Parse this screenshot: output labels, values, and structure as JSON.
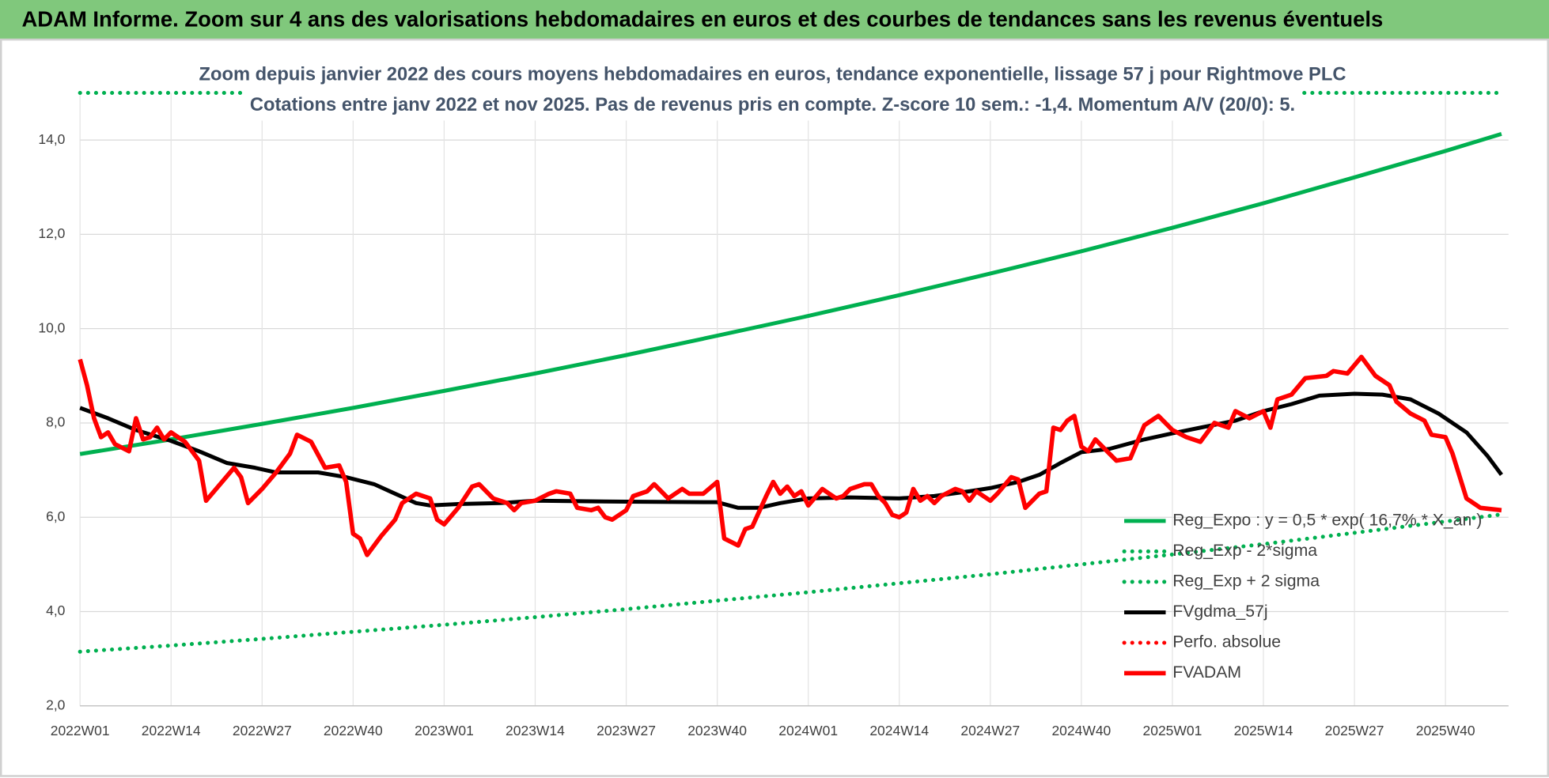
{
  "header": {
    "title": "ADAM Informe. Zoom sur 4 ans des valorisations hebdomadaires en euros et des courbes de tendances sans les revenus éventuels"
  },
  "chart_data": {
    "type": "line",
    "title": "Zoom depuis janvier 2022 des cours moyens hebdomadaires en euros, tendance exponentielle, lissage 57 j pour Rightmove PLC",
    "subtitle": "Cotations entre janv 2022 et nov 2025. Pas de revenus pris en compte. Z-score 10 sem.: -1,4.  Momentum A/V (20/0): 5.",
    "xlim": [
      0,
      204
    ],
    "xticks": [
      {
        "value": 0,
        "label": "2022W01"
      },
      {
        "value": 13,
        "label": "2022W14"
      },
      {
        "value": 26,
        "label": "2022W27"
      },
      {
        "value": 39,
        "label": "2022W40"
      },
      {
        "value": 52,
        "label": "2023W01"
      },
      {
        "value": 65,
        "label": "2023W14"
      },
      {
        "value": 78,
        "label": "2023W27"
      },
      {
        "value": 91,
        "label": "2023W40"
      },
      {
        "value": 104,
        "label": "2024W01"
      },
      {
        "value": 117,
        "label": "2024W14"
      },
      {
        "value": 130,
        "label": "2024W27"
      },
      {
        "value": 143,
        "label": "2024W40"
      },
      {
        "value": 156,
        "label": "2025W01"
      },
      {
        "value": 169,
        "label": "2025W14"
      },
      {
        "value": 182,
        "label": "2025W27"
      },
      {
        "value": 195,
        "label": "2025W40"
      }
    ],
    "ylim": [
      2,
      15
    ],
    "yticks": [
      {
        "value": 2,
        "label": "2,0"
      },
      {
        "value": 4,
        "label": "4,0"
      },
      {
        "value": 6,
        "label": "6,0"
      },
      {
        "value": 8,
        "label": "8,0"
      },
      {
        "value": 10,
        "label": "10,0"
      },
      {
        "value": 12,
        "label": "12,0"
      },
      {
        "value": 14,
        "label": "14,0"
      }
    ],
    "grid": true,
    "legend": "right",
    "series": [
      {
        "name": "Reg_Expo : y = 0,5 * exp( 16,7% * X_an )",
        "color": "#00b050",
        "style": "solid",
        "x": [
          0,
          13,
          26,
          39,
          52,
          65,
          78,
          91,
          104,
          117,
          130,
          143,
          156,
          169,
          182,
          195,
          203
        ],
        "values": [
          7.34,
          7.65,
          7.98,
          8.32,
          8.68,
          9.05,
          9.44,
          9.85,
          10.27,
          10.71,
          11.17,
          11.64,
          12.14,
          12.66,
          13.21,
          13.77,
          14.13
        ]
      },
      {
        "name": "Reg_Exp - 2*sigma",
        "color": "#00b050",
        "style": "dotted",
        "x": [
          0,
          13,
          26,
          39,
          52,
          65,
          78,
          91,
          104,
          117,
          130,
          143,
          156,
          169,
          182,
          195,
          203
        ],
        "values": [
          3.15,
          3.28,
          3.42,
          3.57,
          3.72,
          3.88,
          4.05,
          4.23,
          4.41,
          4.6,
          4.79,
          5.0,
          5.21,
          5.43,
          5.67,
          5.91,
          6.06
        ]
      },
      {
        "name": "Reg_Exp + 2 sigma",
        "color": "#00b050",
        "style": "dotted",
        "x": [
          0,
          203
        ],
        "values": [
          15,
          15
        ]
      },
      {
        "name": "FVgdma_57j",
        "color": "#000000",
        "style": "solid",
        "x": [
          0,
          4,
          8,
          13,
          17,
          21,
          25,
          28,
          34,
          38,
          42,
          45,
          48,
          50,
          54,
          60,
          65,
          78,
          91,
          94,
          97,
          100,
          104,
          110,
          117,
          122,
          127,
          130,
          134,
          137,
          140,
          143,
          147,
          152,
          156,
          160,
          165,
          169,
          173,
          177,
          182,
          186,
          190,
          194,
          198,
          201,
          203
        ],
        "values": [
          8.32,
          8.1,
          7.85,
          7.62,
          7.4,
          7.15,
          7.05,
          6.95,
          6.95,
          6.85,
          6.7,
          6.5,
          6.3,
          6.25,
          6.28,
          6.3,
          6.35,
          6.33,
          6.32,
          6.2,
          6.2,
          6.3,
          6.4,
          6.42,
          6.4,
          6.45,
          6.55,
          6.62,
          6.75,
          6.9,
          7.15,
          7.38,
          7.45,
          7.65,
          7.78,
          7.9,
          8.05,
          8.25,
          8.4,
          8.58,
          8.62,
          8.6,
          8.5,
          8.2,
          7.8,
          7.3,
          6.9
        ]
      },
      {
        "name": "Perfo. absolue",
        "color": "#ff0000",
        "style": "dotted",
        "x": [],
        "values": []
      },
      {
        "name": "FVADAM",
        "color": "#ff0000",
        "style": "thick",
        "x": [
          0,
          1,
          2,
          3,
          4,
          5,
          7,
          8,
          9,
          10,
          11,
          12,
          13,
          14,
          15,
          17,
          18,
          20,
          22,
          23,
          24,
          26,
          28,
          30,
          31,
          33,
          35,
          37,
          38,
          39,
          40,
          41,
          43,
          45,
          46,
          48,
          50,
          51,
          52,
          54,
          56,
          57,
          59,
          61,
          62,
          63,
          65,
          67,
          68,
          70,
          71,
          73,
          74,
          75,
          76,
          78,
          79,
          81,
          82,
          84,
          86,
          87,
          89,
          91,
          92,
          94,
          95,
          96,
          98,
          99,
          100,
          101,
          102,
          103,
          104,
          106,
          107,
          108,
          109,
          110,
          112,
          113,
          114,
          115,
          116,
          117,
          118,
          119,
          120,
          121,
          122,
          123,
          125,
          126,
          127,
          128,
          130,
          131,
          133,
          134,
          135,
          137,
          138,
          139,
          140,
          141,
          142,
          143,
          144,
          145,
          146,
          148,
          150,
          152,
          154,
          156,
          158,
          160,
          162,
          164,
          165,
          167,
          169,
          170,
          171,
          173,
          175,
          178,
          179,
          181,
          183,
          185,
          187,
          188,
          190,
          192,
          193,
          195,
          196,
          198,
          200,
          203
        ],
        "values": [
          9.35,
          8.8,
          8.1,
          7.7,
          7.8,
          7.55,
          7.4,
          8.1,
          7.65,
          7.7,
          7.9,
          7.65,
          7.8,
          7.7,
          7.6,
          7.2,
          6.35,
          6.7,
          7.05,
          6.85,
          6.3,
          6.6,
          6.95,
          7.35,
          7.75,
          7.6,
          7.05,
          7.1,
          6.75,
          5.65,
          5.55,
          5.2,
          5.6,
          5.95,
          6.3,
          6.5,
          6.4,
          5.95,
          5.85,
          6.2,
          6.65,
          6.7,
          6.4,
          6.3,
          6.15,
          6.3,
          6.35,
          6.5,
          6.55,
          6.5,
          6.2,
          6.15,
          6.2,
          6.0,
          5.95,
          6.15,
          6.45,
          6.55,
          6.7,
          6.4,
          6.6,
          6.5,
          6.5,
          6.75,
          5.55,
          5.4,
          5.75,
          5.8,
          6.45,
          6.75,
          6.5,
          6.65,
          6.45,
          6.55,
          6.25,
          6.6,
          6.5,
          6.4,
          6.45,
          6.6,
          6.7,
          6.7,
          6.45,
          6.3,
          6.05,
          6.0,
          6.1,
          6.6,
          6.35,
          6.45,
          6.3,
          6.45,
          6.6,
          6.55,
          6.35,
          6.55,
          6.35,
          6.5,
          6.85,
          6.8,
          6.2,
          6.5,
          6.55,
          7.9,
          7.85,
          8.05,
          8.15,
          7.5,
          7.4,
          7.65,
          7.5,
          7.2,
          7.25,
          7.95,
          8.15,
          7.85,
          7.7,
          7.6,
          8.0,
          7.9,
          8.25,
          8.1,
          8.25,
          7.9,
          8.5,
          8.6,
          8.95,
          9.0,
          9.1,
          9.05,
          9.4,
          9.0,
          8.8,
          8.45,
          8.2,
          8.05,
          7.75,
          7.7,
          7.35,
          6.4,
          6.2,
          6.15
        ]
      }
    ]
  }
}
